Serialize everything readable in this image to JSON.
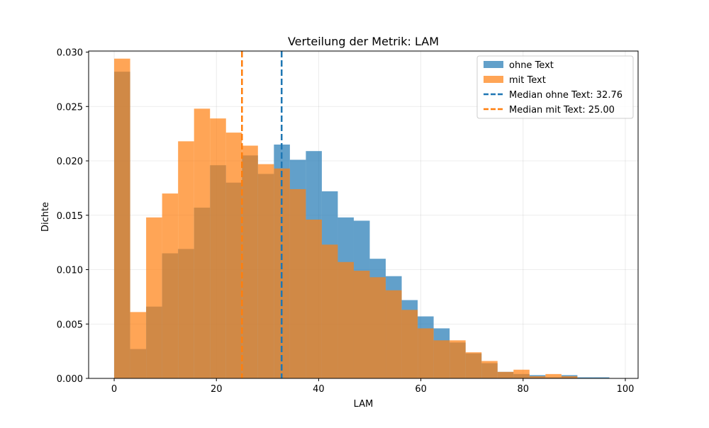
{
  "chart_data": {
    "type": "histogram",
    "title": "Verteilung der Metrik: LAM",
    "xlabel": "LAM",
    "ylabel": "Dichte",
    "xlim": [
      -5,
      102.5
    ],
    "ylim": [
      0,
      0.0301
    ],
    "xticks": [
      0,
      20,
      40,
      60,
      80,
      100
    ],
    "yticks": [
      0.0,
      0.005,
      0.01,
      0.015,
      0.02,
      0.025,
      0.03
    ],
    "ytick_labels": [
      "0.000",
      "0.005",
      "0.010",
      "0.015",
      "0.020",
      "0.025",
      "0.030"
    ],
    "grid": true,
    "legend_position": "top-right",
    "series": [
      {
        "name": "ohne Text",
        "color": "#1f77b4",
        "opacity": 0.7,
        "bin_edges": [
          0,
          3.125,
          6.25,
          9.375,
          12.5,
          15.625,
          18.75,
          21.875,
          25,
          28.125,
          31.25,
          34.375,
          37.5,
          40.625,
          43.75,
          46.875,
          50,
          53.125,
          56.25,
          59.375,
          62.5,
          65.625,
          68.75,
          71.875,
          75,
          78.125,
          81.25,
          84.375,
          87.5,
          90.625,
          93.75,
          96.875,
          100
        ],
        "values": [
          0.0282,
          0.0027,
          0.0066,
          0.0115,
          0.0119,
          0.0157,
          0.0196,
          0.018,
          0.0205,
          0.0188,
          0.0215,
          0.0201,
          0.0209,
          0.0172,
          0.0148,
          0.0145,
          0.011,
          0.0094,
          0.0072,
          0.0057,
          0.0046,
          0.0033,
          0.0023,
          0.0014,
          0.0006,
          0.0004,
          0.0003,
          0.0001,
          0.0003,
          0.0001,
          0.0001,
          0.0
        ]
      },
      {
        "name": "mit Text",
        "color": "#ff7f0e",
        "opacity": 0.7,
        "bin_edges": [
          0,
          3.125,
          6.25,
          9.375,
          12.5,
          15.625,
          18.75,
          21.875,
          25,
          28.125,
          31.25,
          34.375,
          37.5,
          40.625,
          43.75,
          46.875,
          50,
          53.125,
          56.25,
          59.375,
          62.5,
          65.625,
          68.75,
          71.875,
          75,
          78.125,
          81.25,
          84.375,
          87.5,
          90.625,
          93.75,
          96.875,
          100
        ],
        "values": [
          0.0294,
          0.0061,
          0.0148,
          0.017,
          0.0218,
          0.0248,
          0.0239,
          0.0226,
          0.0214,
          0.0197,
          0.0193,
          0.0174,
          0.0146,
          0.0123,
          0.0107,
          0.0099,
          0.0093,
          0.0081,
          0.0063,
          0.0046,
          0.0035,
          0.0035,
          0.0024,
          0.0016,
          0.0006,
          0.0008,
          0.0002,
          0.0004,
          0.0002,
          0.0,
          0.0,
          0.0
        ]
      }
    ],
    "vlines": [
      {
        "label": "Median ohne Text: 32.76",
        "x": 32.76,
        "color": "#1f77b4",
        "style": "dashed"
      },
      {
        "label": "Median mit Text: 25.00",
        "x": 25.0,
        "color": "#ff7f0e",
        "style": "dashed"
      }
    ]
  }
}
